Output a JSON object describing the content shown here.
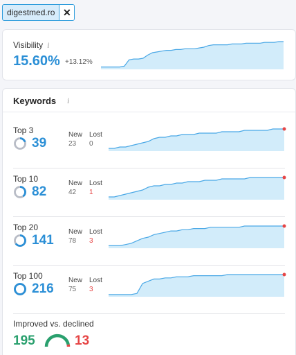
{
  "filter": {
    "domain": "digestmed.ro",
    "close_glyph": "✕"
  },
  "visibility": {
    "label": "Visibility",
    "value": "15.60%",
    "change": "+13.12%",
    "trend": [
      3,
      3,
      3,
      3,
      3,
      4,
      12,
      13,
      13,
      14,
      18,
      21,
      22,
      23,
      24,
      24,
      25,
      25,
      26,
      26,
      26,
      27,
      28,
      30,
      31,
      31,
      31,
      31,
      32,
      32,
      32,
      33,
      33,
      33,
      33,
      34,
      34,
      34,
      35,
      35
    ]
  },
  "keywords": {
    "title": "Keywords",
    "new_label": "New",
    "lost_label": "Lost",
    "rows": [
      {
        "label": "Top 3",
        "count": "39",
        "new": "23",
        "lost": "0",
        "ring_fill": 0.2,
        "trend": [
          2,
          2,
          3,
          3,
          4,
          5,
          6,
          7,
          9,
          10,
          10,
          11,
          11,
          12,
          12,
          12,
          13,
          13,
          13,
          13,
          14,
          14,
          14,
          14,
          15,
          15,
          15,
          15,
          15,
          16,
          16,
          16
        ]
      },
      {
        "label": "Top 10",
        "count": "82",
        "new": "42",
        "lost": "1",
        "ring_fill": 0.4,
        "trend": [
          2,
          2,
          3,
          4,
          5,
          6,
          7,
          9,
          10,
          10,
          11,
          11,
          12,
          12,
          13,
          13,
          13,
          14,
          14,
          14,
          15,
          15,
          15,
          15,
          15,
          16,
          16,
          16,
          16,
          16,
          16,
          16
        ]
      },
      {
        "label": "Top 20",
        "count": "141",
        "new": "78",
        "lost": "3",
        "ring_fill": 0.65,
        "trend": [
          2,
          2,
          2,
          3,
          4,
          6,
          8,
          9,
          11,
          12,
          13,
          14,
          14,
          15,
          15,
          16,
          16,
          16,
          17,
          17,
          17,
          17,
          17,
          17,
          18,
          18,
          18,
          18,
          18,
          18,
          18,
          18
        ]
      },
      {
        "label": "Top 100",
        "count": "216",
        "new": "75",
        "lost": "3",
        "ring_fill": 1.0,
        "trend": [
          2,
          2,
          2,
          2,
          2,
          3,
          12,
          14,
          16,
          16,
          17,
          17,
          18,
          18,
          18,
          19,
          19,
          19,
          19,
          19,
          19,
          20,
          20,
          20,
          20,
          20,
          20,
          20,
          20,
          20,
          20,
          20
        ]
      }
    ]
  },
  "improved_declined": {
    "label": "Improved vs. declined",
    "improved": "195",
    "declined": "13",
    "improved_share": 0.94
  },
  "colors": {
    "accent": "#2b8fd6",
    "area": "#d2ecfa",
    "line": "#4aa8e6",
    "improved": "#2aa06e",
    "declined": "#e64545"
  }
}
